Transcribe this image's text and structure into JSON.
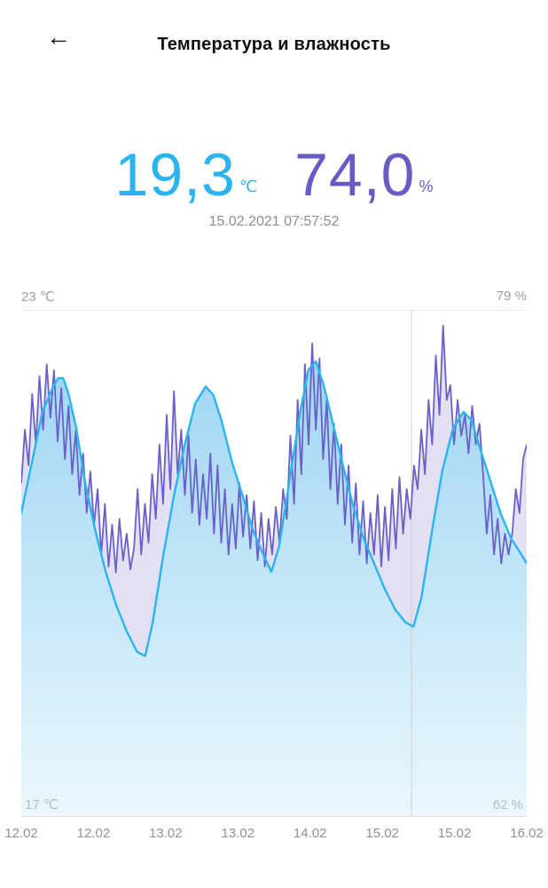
{
  "header": {
    "title": "Температура и влажность",
    "back_icon": "←"
  },
  "readings": {
    "temperature": {
      "value": "19,3",
      "unit": "℃",
      "color": "#2ab3ee"
    },
    "humidity": {
      "value": "74,0",
      "unit": "%",
      "color": "#655cc6"
    },
    "timestamp": "15.02.2021 07:57:52"
  },
  "chart_data": {
    "type": "line",
    "title": "Temperature and humidity history",
    "x_axis": {
      "labels": [
        "12.02",
        "12.02",
        "13.02",
        "13.02",
        "14.02",
        "15.02",
        "15.02",
        "16.02"
      ]
    },
    "left_axis": {
      "name": "temperature",
      "unit": "℃",
      "min": 17,
      "max": 23,
      "label_top": "23 ℃",
      "label_bottom": "17 ℃"
    },
    "right_axis": {
      "name": "humidity",
      "unit": "%",
      "min": 62,
      "max": 79,
      "label_top": "79 %",
      "label_bottom": "62 %"
    },
    "marker_x": 0.772,
    "colors": {
      "temp_line": "#29b6f0",
      "temp_fill_top": "#9fd6f2",
      "temp_fill_bottom": "#eaf7fd",
      "hum_line": "#6a61c8",
      "hum_fill": "#e3e0f3",
      "marker": "#cfcfcf"
    },
    "series": [
      {
        "name": "temperature",
        "axis": "left",
        "color": "#29b6f0",
        "points": [
          [
            0.0,
            20.6
          ],
          [
            0.021,
            21.2
          ],
          [
            0.042,
            21.8
          ],
          [
            0.063,
            22.1
          ],
          [
            0.073,
            22.2
          ],
          [
            0.083,
            22.2
          ],
          [
            0.094,
            22.0
          ],
          [
            0.109,
            21.6
          ],
          [
            0.125,
            21.0
          ],
          [
            0.146,
            20.4
          ],
          [
            0.167,
            19.9
          ],
          [
            0.188,
            19.5
          ],
          [
            0.208,
            19.2
          ],
          [
            0.229,
            18.95
          ],
          [
            0.245,
            18.9
          ],
          [
            0.26,
            19.3
          ],
          [
            0.281,
            20.1
          ],
          [
            0.302,
            20.8
          ],
          [
            0.323,
            21.4
          ],
          [
            0.344,
            21.9
          ],
          [
            0.365,
            22.1
          ],
          [
            0.38,
            22.0
          ],
          [
            0.396,
            21.7
          ],
          [
            0.417,
            21.2
          ],
          [
            0.438,
            20.8
          ],
          [
            0.458,
            20.4
          ],
          [
            0.479,
            20.1
          ],
          [
            0.495,
            19.9
          ],
          [
            0.51,
            20.2
          ],
          [
            0.531,
            21.0
          ],
          [
            0.552,
            21.8
          ],
          [
            0.568,
            22.3
          ],
          [
            0.583,
            22.4
          ],
          [
            0.599,
            22.1
          ],
          [
            0.615,
            21.7
          ],
          [
            0.635,
            21.2
          ],
          [
            0.656,
            20.7
          ],
          [
            0.677,
            20.3
          ],
          [
            0.698,
            20.0
          ],
          [
            0.719,
            19.7
          ],
          [
            0.74,
            19.45
          ],
          [
            0.76,
            19.3
          ],
          [
            0.776,
            19.25
          ],
          [
            0.792,
            19.6
          ],
          [
            0.813,
            20.4
          ],
          [
            0.833,
            21.1
          ],
          [
            0.854,
            21.6
          ],
          [
            0.875,
            21.8
          ],
          [
            0.891,
            21.7
          ],
          [
            0.906,
            21.4
          ],
          [
            0.927,
            21.0
          ],
          [
            0.948,
            20.6
          ],
          [
            0.969,
            20.3
          ],
          [
            0.99,
            20.1
          ],
          [
            1.0,
            20.0
          ]
        ]
      },
      {
        "name": "humidity",
        "axis": "right",
        "color": "#6a61c8",
        "values": [
          73.2,
          75.0,
          73.8,
          76.2,
          74.5,
          76.8,
          75.0,
          77.2,
          75.4,
          77.0,
          74.6,
          76.4,
          74.0,
          75.8,
          73.5,
          75.0,
          72.8,
          74.2,
          72.2,
          73.6,
          71.8,
          73.0,
          70.8,
          72.5,
          70.4,
          71.8,
          70.2,
          72.0,
          70.6,
          71.5,
          70.3,
          71.0,
          73.0,
          70.8,
          72.5,
          71.2,
          73.5,
          72.0,
          74.5,
          72.5,
          75.5,
          73.0,
          76.3,
          73.5,
          75.0,
          72.8,
          74.8,
          72.2,
          74.0,
          71.8,
          73.5,
          72.0,
          74.2,
          71.5,
          73.8,
          71.2,
          73.0,
          70.8,
          72.5,
          71.0,
          73.2,
          71.4,
          72.8,
          71.0,
          72.6,
          70.6,
          72.2,
          70.4,
          72.0,
          70.8,
          72.4,
          71.2,
          73.0,
          72.0,
          74.8,
          72.5,
          76.0,
          73.5,
          77.2,
          74.5,
          77.9,
          75.0,
          77.4,
          74.0,
          76.0,
          73.0,
          75.2,
          72.5,
          74.5,
          71.8,
          73.8,
          71.2,
          73.2,
          70.8,
          72.6,
          70.5,
          72.2,
          70.8,
          72.8,
          70.4,
          72.4,
          70.6,
          73.0,
          71.0,
          73.4,
          71.5,
          73.0,
          72.0,
          73.8,
          73.0,
          75.0,
          73.5,
          76.0,
          74.5,
          77.5,
          75.5,
          78.5,
          76.0,
          76.5,
          74.5,
          76.0,
          74.8,
          75.5,
          74.2,
          75.8,
          74.5,
          75.2,
          73.5,
          71.5,
          72.8,
          70.8,
          72.0,
          70.5,
          71.5,
          70.8,
          71.5,
          73.0,
          72.2,
          74.0,
          74.5
        ]
      }
    ]
  }
}
